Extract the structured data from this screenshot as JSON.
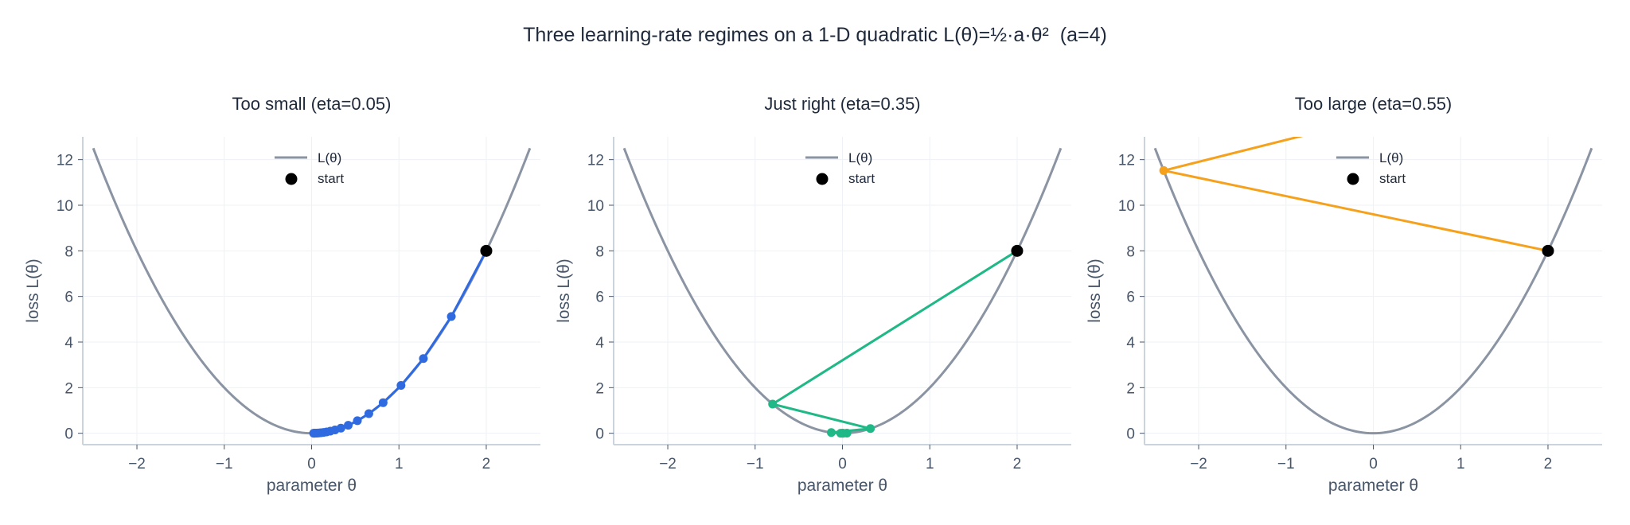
{
  "figure": {
    "title": "Three learning-rate regimes on a 1-D quadratic L(θ)=½·a·θ²  (a=4)"
  },
  "colors": {
    "curve": "#8b94a3",
    "start": "#000000",
    "grid": "#eef1f6",
    "axis": "#cbd3dd",
    "text": "#475569",
    "title": "#1e293b"
  },
  "chart_data": [
    {
      "type": "line",
      "title": "Too small (eta=0.05)",
      "xlabel": "parameter θ",
      "ylabel": "loss L(θ)",
      "xlim": [
        -2.62,
        2.62
      ],
      "ylim": [
        -0.5,
        13
      ],
      "xticks": [
        -2,
        -1,
        0,
        1,
        2
      ],
      "xtick_labels": [
        "−2",
        "−1",
        "0",
        "1",
        "2"
      ],
      "yticks": [
        0,
        2,
        4,
        6,
        8,
        10,
        12
      ],
      "ytick_labels": [
        "0",
        "2",
        "4",
        "6",
        "8",
        "10",
        "12"
      ],
      "grid": true,
      "legend": {
        "position": "upper center",
        "entries": [
          "L(θ)",
          "start"
        ]
      },
      "curve": {
        "name": "L(θ)",
        "a": 4,
        "x_range": [
          -2.5,
          2.5
        ]
      },
      "start": {
        "name": "start",
        "x": 2,
        "y": 8
      },
      "trajectory": {
        "color": "#2f6ae0",
        "eta": 0.05,
        "x": [
          2,
          1.6,
          1.28,
          1.024,
          0.8192,
          0.65536,
          0.524288,
          0.41943,
          0.33554,
          0.26844,
          0.21475,
          0.1718,
          0.13744,
          0.10995,
          0.08796,
          0.07037,
          0.0563,
          0.04504,
          0.03603,
          0.02882,
          0.02306
        ],
        "y": [
          8,
          5.12,
          3.2768,
          2.0972,
          1.3422,
          0.859,
          0.5498,
          0.3518,
          0.2252,
          0.1441,
          0.0922,
          0.059,
          0.0378,
          0.0242,
          0.0155,
          0.0099,
          0.0063,
          0.0041,
          0.0026,
          0.0017,
          0.0011
        ]
      }
    },
    {
      "type": "line",
      "title": "Just right (eta=0.35)",
      "xlabel": "parameter θ",
      "ylabel": "loss L(θ)",
      "xlim": [
        -2.62,
        2.62
      ],
      "ylim": [
        -0.5,
        13
      ],
      "xticks": [
        -2,
        -1,
        0,
        1,
        2
      ],
      "xtick_labels": [
        "−2",
        "−1",
        "0",
        "1",
        "2"
      ],
      "yticks": [
        0,
        2,
        4,
        6,
        8,
        10,
        12
      ],
      "ytick_labels": [
        "0",
        "2",
        "4",
        "6",
        "8",
        "10",
        "12"
      ],
      "grid": true,
      "legend": {
        "position": "upper center",
        "entries": [
          "L(θ)",
          "start"
        ]
      },
      "curve": {
        "name": "L(θ)",
        "a": 4,
        "x_range": [
          -2.5,
          2.5
        ]
      },
      "start": {
        "name": "start",
        "x": 2,
        "y": 8
      },
      "trajectory": {
        "color": "#1fb886",
        "eta": 0.35,
        "x": [
          2,
          -0.8,
          0.32,
          -0.128,
          0.0512,
          -0.02048,
          0.008192,
          -0.003277,
          0.001311
        ],
        "y": [
          8,
          1.28,
          0.2048,
          0.0328,
          0.0052,
          0.0008,
          0.0001,
          0.0,
          0.0
        ]
      }
    },
    {
      "type": "line",
      "title": "Too large (eta=0.55)",
      "xlabel": "parameter θ",
      "ylabel": "loss L(θ)",
      "xlim": [
        -2.62,
        2.62
      ],
      "ylim": [
        -0.5,
        13
      ],
      "xticks": [
        -2,
        -1,
        0,
        1,
        2
      ],
      "xtick_labels": [
        "−2",
        "−1",
        "0",
        "1",
        "2"
      ],
      "yticks": [
        0,
        2,
        4,
        6,
        8,
        10,
        12
      ],
      "ytick_labels": [
        "0",
        "2",
        "4",
        "6",
        "8",
        "10",
        "12"
      ],
      "grid": true,
      "legend": {
        "position": "upper center",
        "entries": [
          "L(θ)",
          "start"
        ]
      },
      "curve": {
        "name": "L(θ)",
        "a": 4,
        "x_range": [
          -2.5,
          2.5
        ]
      },
      "start": {
        "name": "start",
        "x": 2,
        "y": 8
      },
      "trajectory": {
        "color": "#f5a11c",
        "eta": 0.55,
        "x": [
          2,
          -2.4,
          2.88
        ],
        "y": [
          8,
          11.52,
          16.5888
        ]
      }
    }
  ]
}
